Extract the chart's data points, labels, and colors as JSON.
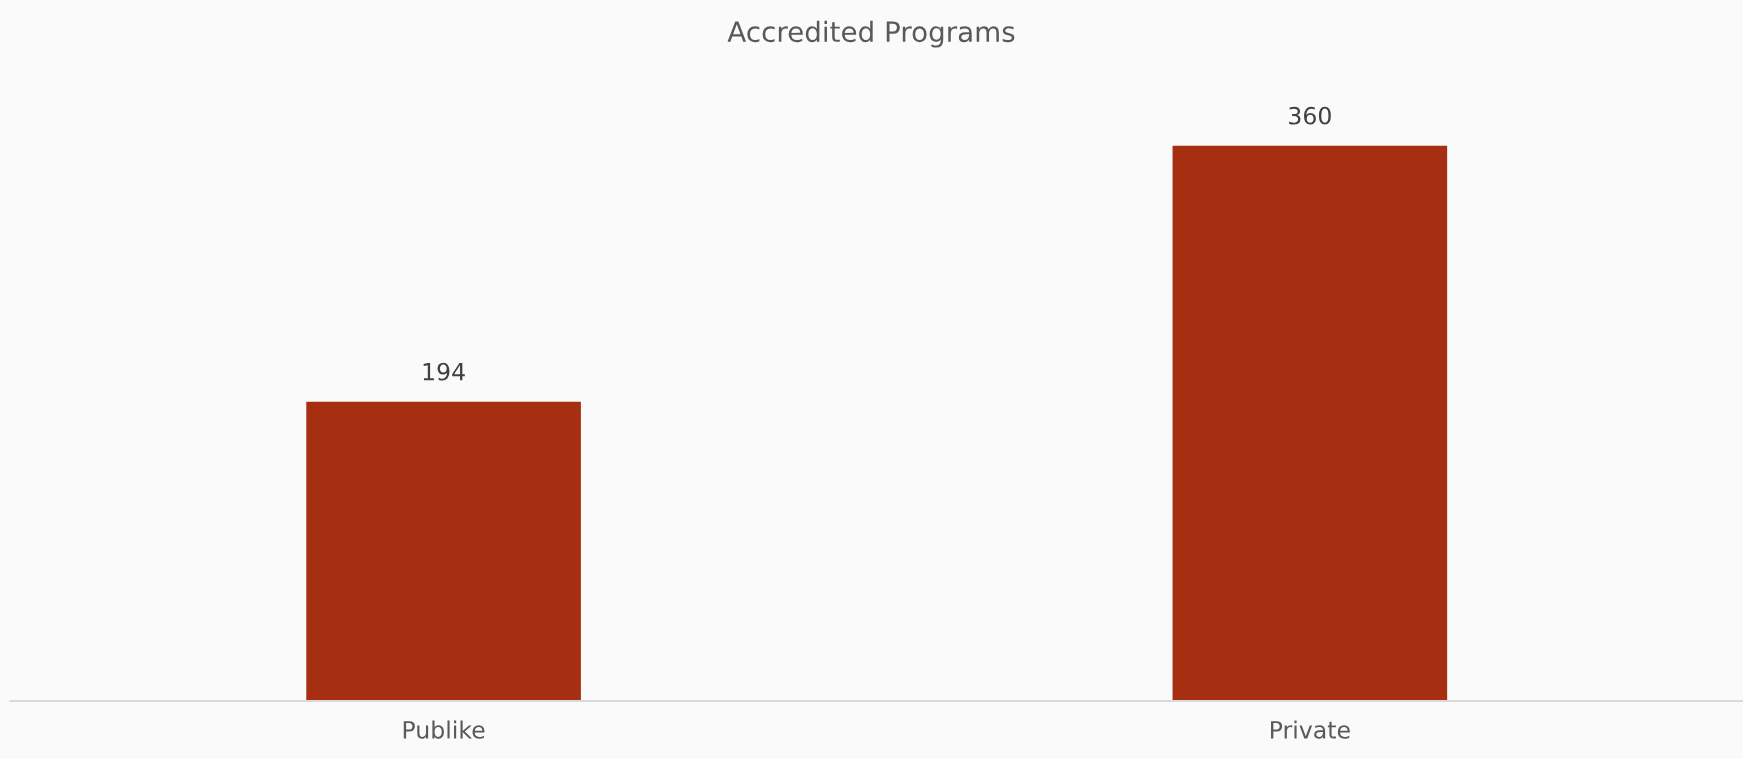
{
  "chart_data": {
    "type": "bar",
    "title": "Accredited Programs",
    "categories": [
      "Publike",
      "Private"
    ],
    "values": [
      194,
      360
    ],
    "color": "#a52f10",
    "tick_labels": "x",
    "grid": false,
    "data_labels": true
  }
}
